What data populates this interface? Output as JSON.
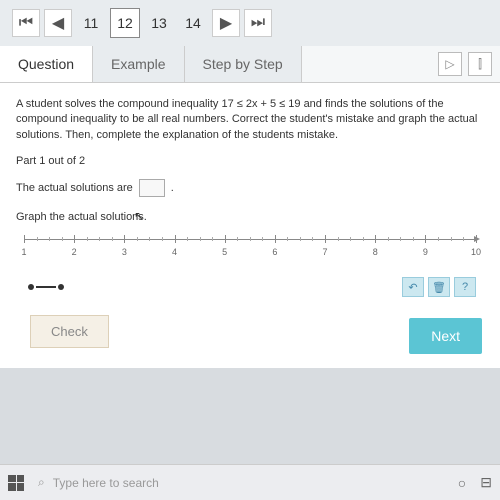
{
  "nav": {
    "pages": [
      "11",
      "12",
      "13",
      "14"
    ],
    "active_index": 1
  },
  "tabs": {
    "items": [
      "Question",
      "Example",
      "Step by Step"
    ],
    "active_index": 0
  },
  "problem": {
    "text": "A student solves the compound inequality 17 ≤ 2x + 5 ≤ 19 and finds the solutions of the compound inequality to be all real numbers. Correct the student's mistake and graph the actual solutions. Then, complete the explanation of the students mistake.",
    "part_label": "Part 1 out of 2",
    "solution_prefix": "The actual solutions are",
    "solution_suffix": ".",
    "graph_instruction": "Graph the actual solutions."
  },
  "number_line": {
    "start": 1,
    "end": 10,
    "labels": [
      "1",
      "2",
      "3",
      "4",
      "5",
      "6",
      "7",
      "8",
      "9",
      "10"
    ],
    "positions_pct": [
      0,
      11.1,
      22.2,
      33.3,
      44.4,
      55.5,
      66.6,
      77.7,
      88.8,
      100
    ]
  },
  "action_icons": {
    "undo": "↶",
    "delete": "🗑",
    "help": "?"
  },
  "buttons": {
    "check": "Check",
    "next": "Next"
  },
  "taskbar": {
    "search_placeholder": "Type here to search"
  },
  "colors": {
    "next_bg": "#5bc5d4",
    "check_bg": "#f5f0e6",
    "icon_bg": "#cce8f0"
  }
}
